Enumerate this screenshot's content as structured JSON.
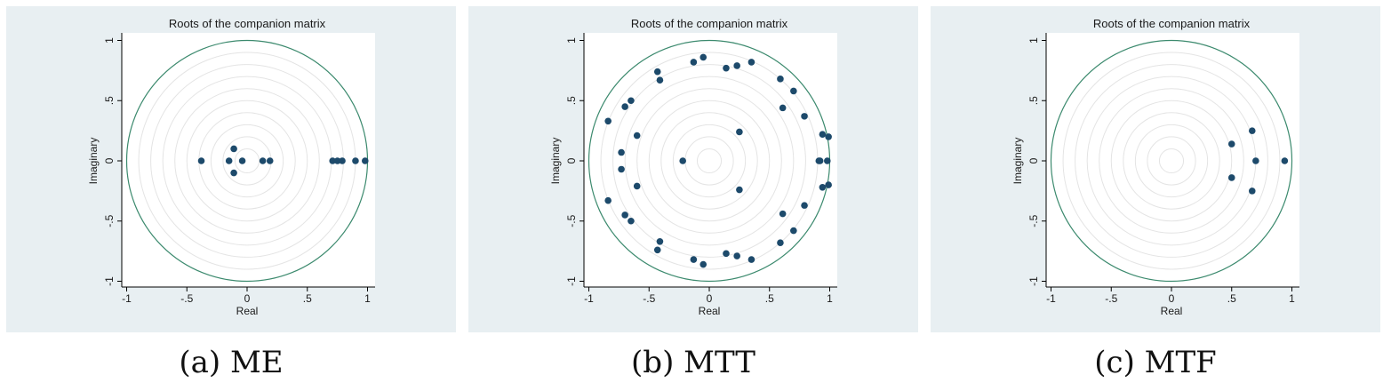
{
  "chart_data": [
    {
      "type": "scatter",
      "title": "Roots of the companion matrix",
      "xlabel": "Real",
      "ylabel": "Imaginary",
      "xlim": [
        -1,
        1
      ],
      "ylim": [
        -1,
        1
      ],
      "xticks": [
        -1,
        -0.5,
        0,
        0.5,
        1
      ],
      "xtick_labels": [
        "-1",
        "-.5",
        "0",
        ".5",
        "1"
      ],
      "yticks": [
        -1,
        -0.5,
        0,
        0.5,
        1
      ],
      "ytick_labels": [
        "-1",
        "-.5",
        "0",
        ".5",
        "1"
      ],
      "grid": "concentric circles",
      "unit_circle": true,
      "caption": "(a) ME",
      "points": [
        {
          "x": -0.38,
          "y": 0.0
        },
        {
          "x": -0.15,
          "y": 0.0
        },
        {
          "x": -0.11,
          "y": 0.1
        },
        {
          "x": -0.11,
          "y": -0.1
        },
        {
          "x": -0.04,
          "y": 0.0
        },
        {
          "x": 0.13,
          "y": 0.0
        },
        {
          "x": 0.19,
          "y": 0.0
        },
        {
          "x": 0.71,
          "y": 0.0
        },
        {
          "x": 0.75,
          "y": 0.0
        },
        {
          "x": 0.79,
          "y": 0.0
        },
        {
          "x": 0.9,
          "y": 0.0
        },
        {
          "x": 0.98,
          "y": 0.0
        }
      ]
    },
    {
      "type": "scatter",
      "title": "Roots of the companion matrix",
      "xlabel": "Real",
      "ylabel": "Imaginary",
      "xlim": [
        -1,
        1
      ],
      "ylim": [
        -1,
        1
      ],
      "xticks": [
        -1,
        -0.5,
        0,
        0.5,
        1
      ],
      "xtick_labels": [
        "-1",
        "-.5",
        "0",
        ".5",
        "1"
      ],
      "yticks": [
        -1,
        -0.5,
        0,
        0.5,
        1
      ],
      "ytick_labels": [
        "-1",
        "-.5",
        "0",
        ".5",
        "1"
      ],
      "grid": "concentric circles",
      "unit_circle": true,
      "caption": "(b) MTT",
      "points": [
        {
          "x": -0.05,
          "y": 0.86
        },
        {
          "x": -0.05,
          "y": -0.86
        },
        {
          "x": -0.13,
          "y": 0.82
        },
        {
          "x": -0.13,
          "y": -0.82
        },
        {
          "x": 0.14,
          "y": 0.77
        },
        {
          "x": 0.14,
          "y": -0.77
        },
        {
          "x": 0.23,
          "y": 0.79
        },
        {
          "x": 0.23,
          "y": -0.79
        },
        {
          "x": 0.35,
          "y": 0.82
        },
        {
          "x": 0.35,
          "y": -0.82
        },
        {
          "x": -0.43,
          "y": 0.74
        },
        {
          "x": -0.43,
          "y": -0.74
        },
        {
          "x": -0.41,
          "y": 0.67
        },
        {
          "x": -0.41,
          "y": -0.67
        },
        {
          "x": -0.65,
          "y": 0.5
        },
        {
          "x": -0.65,
          "y": -0.5
        },
        {
          "x": -0.7,
          "y": 0.45
        },
        {
          "x": -0.7,
          "y": -0.45
        },
        {
          "x": -0.84,
          "y": 0.33
        },
        {
          "x": -0.84,
          "y": -0.33
        },
        {
          "x": -0.6,
          "y": 0.21
        },
        {
          "x": -0.6,
          "y": -0.21
        },
        {
          "x": -0.73,
          "y": 0.07
        },
        {
          "x": -0.73,
          "y": -0.07
        },
        {
          "x": -0.22,
          "y": 0.0
        },
        {
          "x": 0.25,
          "y": 0.24
        },
        {
          "x": 0.25,
          "y": -0.24
        },
        {
          "x": 0.59,
          "y": 0.68
        },
        {
          "x": 0.59,
          "y": -0.68
        },
        {
          "x": 0.7,
          "y": 0.58
        },
        {
          "x": 0.7,
          "y": -0.58
        },
        {
          "x": 0.61,
          "y": 0.44
        },
        {
          "x": 0.61,
          "y": -0.44
        },
        {
          "x": 0.79,
          "y": 0.37
        },
        {
          "x": 0.79,
          "y": -0.37
        },
        {
          "x": 0.94,
          "y": 0.22
        },
        {
          "x": 0.94,
          "y": -0.22
        },
        {
          "x": 0.99,
          "y": 0.2
        },
        {
          "x": 0.99,
          "y": -0.2
        },
        {
          "x": 0.91,
          "y": 0.0
        },
        {
          "x": 0.92,
          "y": 0.0
        },
        {
          "x": 0.98,
          "y": 0.0
        }
      ]
    },
    {
      "type": "scatter",
      "title": "Roots of the companion matrix",
      "xlabel": "Real",
      "ylabel": "Imaginary",
      "xlim": [
        -1,
        1
      ],
      "ylim": [
        -1,
        1
      ],
      "xticks": [
        -1,
        -0.5,
        0,
        0.5,
        1
      ],
      "xtick_labels": [
        "-1",
        "-.5",
        "0",
        ".5",
        "1"
      ],
      "yticks": [
        -1,
        -0.5,
        0,
        0.5,
        1
      ],
      "ytick_labels": [
        "-1",
        "-.5",
        "0",
        ".5",
        "1"
      ],
      "grid": "concentric circles",
      "unit_circle": true,
      "caption": "(c) MTF",
      "points": [
        {
          "x": 0.67,
          "y": 0.25
        },
        {
          "x": 0.67,
          "y": -0.25
        },
        {
          "x": 0.5,
          "y": 0.14
        },
        {
          "x": 0.5,
          "y": -0.14
        },
        {
          "x": 0.7,
          "y": 0.0
        },
        {
          "x": 0.94,
          "y": 0.0
        }
      ]
    }
  ],
  "colors": {
    "panel_bg": "#e8eff2",
    "plot_bg": "#ffffff",
    "unit_circle": "#3c8a6e",
    "grid_circle": "#e4e4e4",
    "marker": "#1d4a6b",
    "axis": "#000000"
  }
}
